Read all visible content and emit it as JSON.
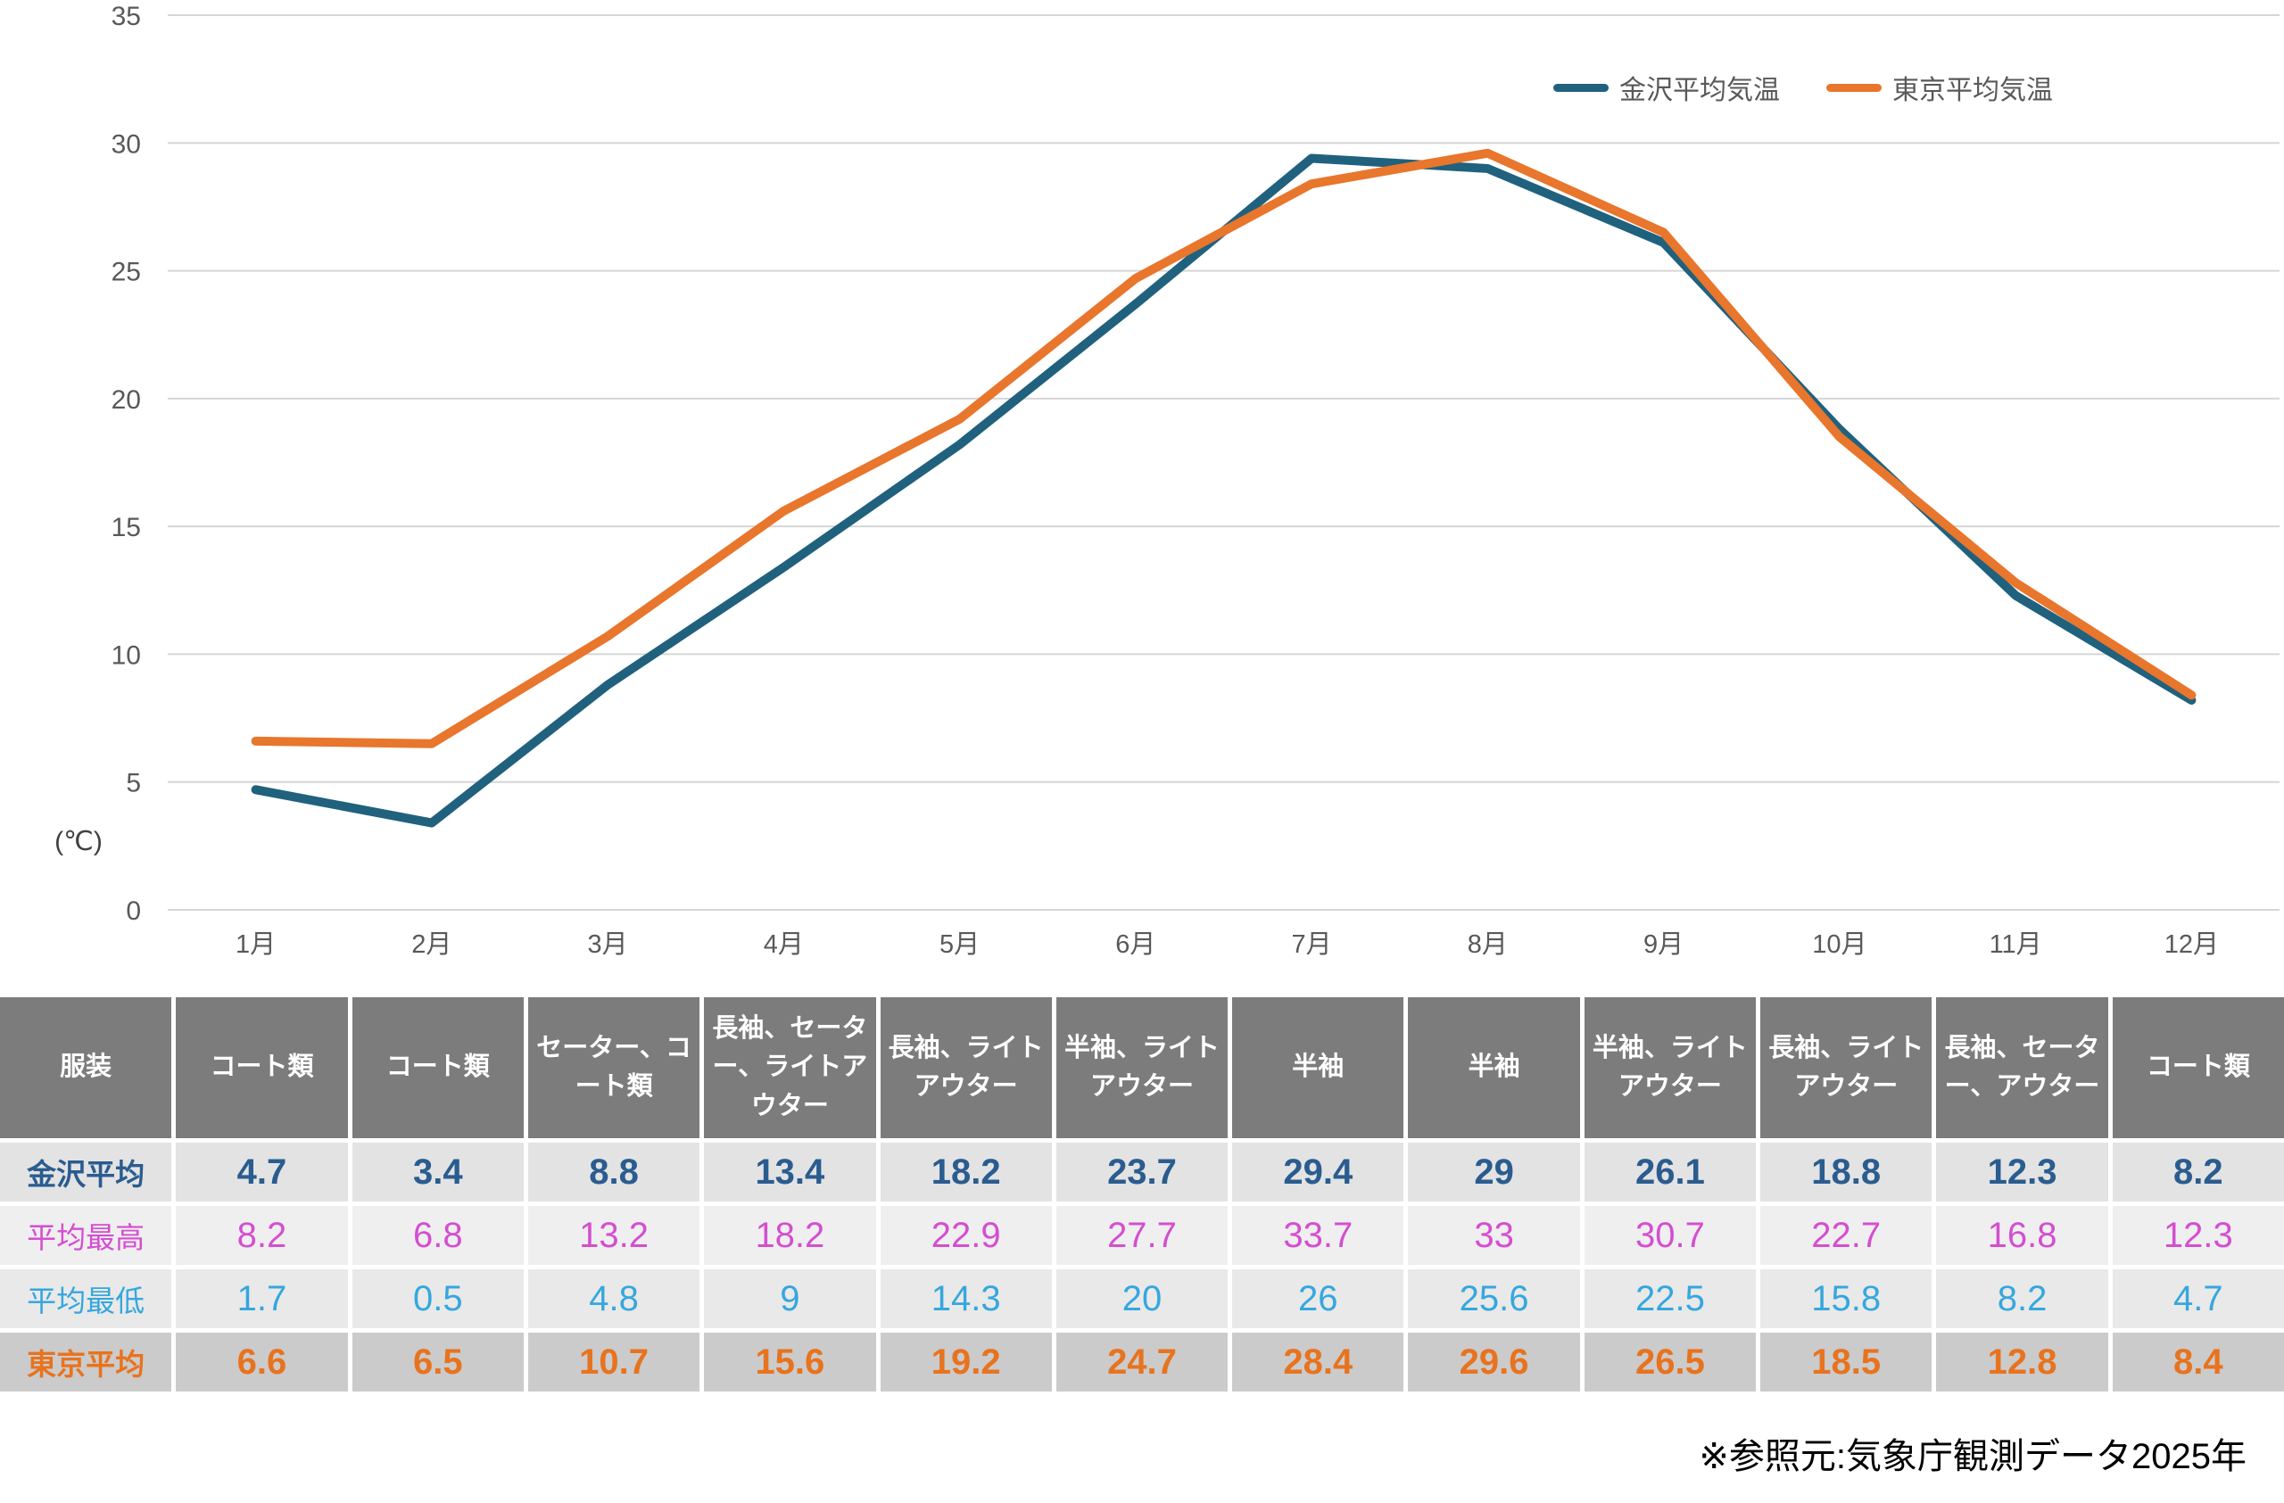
{
  "style": {
    "axis_text_color": "#595959",
    "grid_line_color": "#D6D6D6",
    "header_bg": "#7C7C7C",
    "header_text_color": "#FFFFFF",
    "row_bgs": [
      "#E3E3E3",
      "#EFEFEF",
      "#E9E9E9",
      "#CBCBCB"
    ],
    "row_text_colors": [
      "#2A5C8F",
      "#D44ED1",
      "#35A7DE",
      "#E8731F"
    ],
    "row_bold": [
      true,
      false,
      false,
      true
    ]
  },
  "chart_data": {
    "type": "line",
    "title": "",
    "categories": [
      "1月",
      "2月",
      "3月",
      "4月",
      "5月",
      "6月",
      "7月",
      "8月",
      "9月",
      "10月",
      "11月",
      "12月"
    ],
    "series": [
      {
        "name": "金沢平均気温",
        "color": "#20617E",
        "values": [
          4.7,
          3.4,
          8.8,
          13.4,
          18.2,
          23.7,
          29.4,
          29,
          26.1,
          18.8,
          12.3,
          8.2
        ]
      },
      {
        "name": "東京平均気温",
        "color": "#E8762C",
        "values": [
          6.6,
          6.5,
          10.7,
          15.6,
          19.2,
          24.7,
          28.4,
          29.6,
          26.5,
          18.5,
          12.8,
          8.4
        ]
      }
    ],
    "xlabel": "",
    "ylabel": "(℃)",
    "ylim": [
      0,
      35
    ],
    "y_ticks": [
      0,
      5,
      10,
      15,
      20,
      25,
      30,
      35
    ],
    "grid": true,
    "legend_position": "top-right"
  },
  "table": {
    "corner_label": "服装",
    "clothing": [
      "コート類",
      "コート類",
      "セーター、コート類",
      "長袖、セーター、ライトアウター",
      "長袖、ライトアウター",
      "半袖、ライトアウター",
      "半袖",
      "半袖",
      "半袖、ライトアウター",
      "長袖、ライトアウター",
      "長袖、セーター、アウター",
      "コート類"
    ],
    "rows": [
      {
        "label": "金沢平均",
        "values": [
          "4.7",
          "3.4",
          "8.8",
          "13.4",
          "18.2",
          "23.7",
          "29.4",
          "29",
          "26.1",
          "18.8",
          "12.3",
          "8.2"
        ]
      },
      {
        "label": "平均最高",
        "values": [
          "8.2",
          "6.8",
          "13.2",
          "18.2",
          "22.9",
          "27.7",
          "33.7",
          "33",
          "30.7",
          "22.7",
          "16.8",
          "12.3"
        ]
      },
      {
        "label": "平均最低",
        "values": [
          "1.7",
          "0.5",
          "4.8",
          "9",
          "14.3",
          "20",
          "26",
          "25.6",
          "22.5",
          "15.8",
          "8.2",
          "4.7"
        ]
      },
      {
        "label": "東京平均",
        "values": [
          "6.6",
          "6.5",
          "10.7",
          "15.6",
          "19.2",
          "24.7",
          "28.4",
          "29.6",
          "26.5",
          "18.5",
          "12.8",
          "8.4"
        ]
      }
    ]
  },
  "footer": {
    "source_note": "※参照元:気象庁観測データ2025年"
  }
}
